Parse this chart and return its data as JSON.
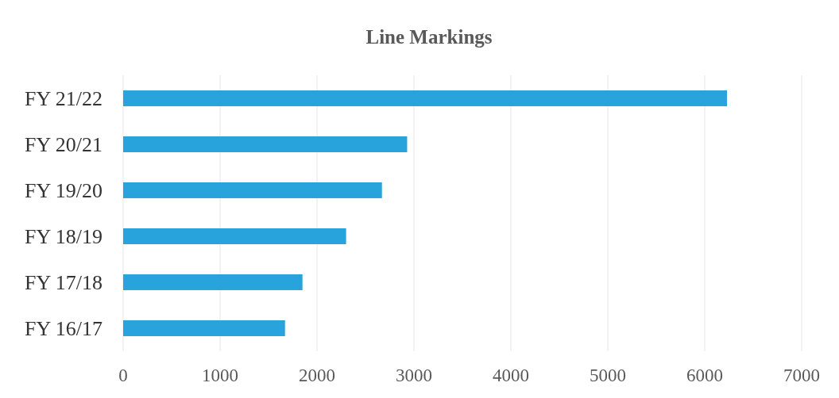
{
  "chart_data": {
    "type": "bar",
    "orientation": "horizontal",
    "title": "Line Markings",
    "categories": [
      "FY 21/22",
      "FY 20/21",
      "FY 19/20",
      "FY 18/19",
      "FY 17/18",
      "FY 16/17"
    ],
    "values": [
      6230,
      2930,
      2670,
      2300,
      1850,
      1670
    ],
    "color": "#29a3dc",
    "xlim": [
      0,
      7000
    ],
    "xticks": [
      0,
      1000,
      2000,
      3000,
      4000,
      5000,
      6000,
      7000
    ],
    "grid": "x"
  }
}
